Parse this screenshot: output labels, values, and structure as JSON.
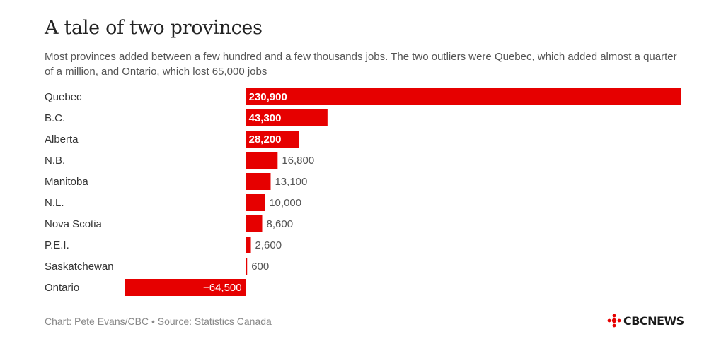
{
  "title": "A tale of two provinces",
  "subtitle": "Most provinces added between a few hundred and a few thousands jobs. The two outliers were Quebec, which added almost a quarter of a million, and Ontario, which lost 65,000 jobs",
  "footer": {
    "credit": "Chart: Pete Evans/CBC • Source: Statistics Canada",
    "logo": "CBCNEWS"
  },
  "colors": {
    "bar": "#e60000",
    "label_inside": "#ffffff",
    "label_outside": "#555555",
    "category": "#333333"
  },
  "chart_data": {
    "type": "bar",
    "orientation": "horizontal",
    "categories": [
      "Quebec",
      "B.C.",
      "Alberta",
      "N.B.",
      "Manitoba",
      "N.L.",
      "Nova Scotia",
      "P.E.I.",
      "Saskatchewan",
      "Ontario"
    ],
    "values": [
      230900,
      43300,
      28200,
      16800,
      13100,
      10000,
      8600,
      2600,
      600,
      -64500
    ],
    "value_labels": [
      "230,900",
      "43,300",
      "28,200",
      "16,800",
      "13,100",
      "10,000",
      "8,600",
      "2,600",
      "600",
      "−64,500"
    ],
    "xlim": [
      -64500,
      230900
    ],
    "grid": false,
    "legend": "none"
  }
}
